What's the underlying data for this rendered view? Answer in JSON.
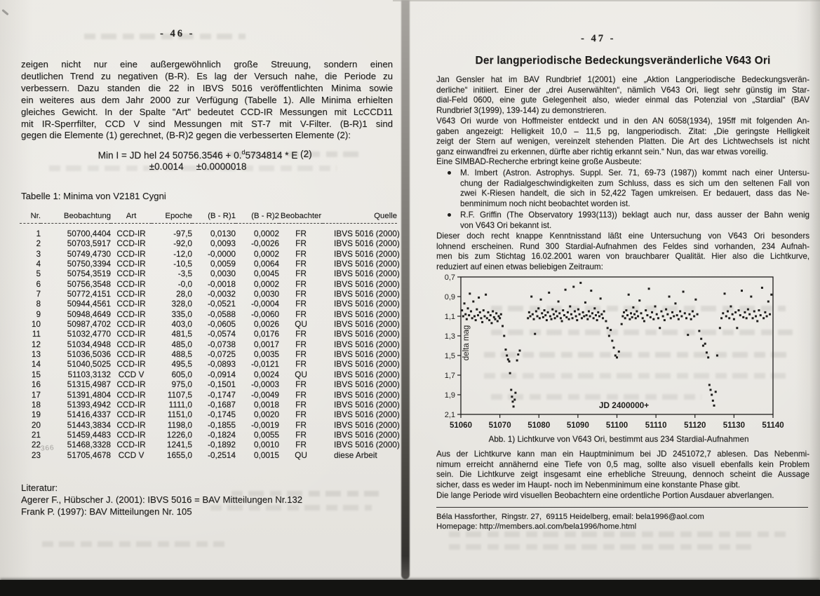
{
  "colors": {
    "paper": "#e9e7e2",
    "ink": "#1e1d1b"
  },
  "left_page": {
    "page_number": "- 46 -",
    "intro_lines": [
      "zeigen nicht nur eine außergewöhnlich große Streuung, sondern einen",
      "deutlichen Trend zu negativen (B-R). Es lag der Versuch nahe, die Periode zu",
      "verbessern. Dazu standen die 22 in IBVS 5016 veröffentlichten Minima sowie",
      "ein weiteres aus dem Jahr 2000 zur Verfügung (Tabelle 1). Alle Minima erhielten",
      "gleiches Gewicht. In der Spalte \"Art\" bedeutet CCD-IR Messungen mit LcCCD11",
      "mit IR-Sperrfilter, CCD V sind Messungen mit ST-7 mit V-Filter. (B-R)1 sind",
      "gegen die Elemente (1) gerechnet, (B-R)2 gegen die verbesserten Elemente (2):"
    ],
    "formula": {
      "pre": "Min I = JD hel 24 50756.3546 + 0.",
      "sup": "d",
      "post": "5734814 * E",
      "eq_no": "(2)",
      "err1": "±0.0014",
      "err2": "±0.0000018"
    },
    "table_title": "Tabelle 1: Minima von V2181 Cygni",
    "table": {
      "headers": [
        "Nr.",
        "Beobachtung",
        "Art",
        "Epoche",
        "(B - R)1",
        "(B - R)2",
        "Beobachter",
        "Quelle"
      ],
      "rows": [
        [
          "1",
          "50700,4404",
          "CCD-IR",
          "-97,5",
          "0,0130",
          "0,0002",
          "FR",
          "IBVS 5016 (2000)"
        ],
        [
          "2",
          "50703,5917",
          "CCD-IR",
          "-92,0",
          "0,0093",
          "-0,0026",
          "FR",
          "IBVS 5016 (2000)"
        ],
        [
          "3",
          "50749,4730",
          "CCD-IR",
          "-12,0",
          "-0,0000",
          "0,0002",
          "FR",
          "IBVS 5016 (2000)"
        ],
        [
          "4",
          "50750,3394",
          "CCD-IR",
          "-10,5",
          "0,0059",
          "0,0064",
          "FR",
          "IBVS 5016 (2000)"
        ],
        [
          "5",
          "50754,3519",
          "CCD-IR",
          "-3,5",
          "0,0030",
          "0,0045",
          "FR",
          "IBVS 5016 (2000)"
        ],
        [
          "6",
          "50756,3548",
          "CCD-IR",
          "-0,0",
          "-0,0018",
          "0,0002",
          "FR",
          "IBVS 5016 (2000)"
        ],
        [
          "7",
          "50772,4151",
          "CCD-IR",
          "28,0",
          "-0,0032",
          "0,0030",
          "FR",
          "IBVS 5016 (2000)"
        ],
        [
          "8",
          "50944,4561",
          "CCD-IR",
          "328,0",
          "-0,0521",
          "-0,0004",
          "FR",
          "IBVS 5016 (2000)"
        ],
        [
          "9",
          "50948,4649",
          "CCD-IR",
          "335,0",
          "-0,0588",
          "-0,0060",
          "FR",
          "IBVS 5016 (2000)"
        ],
        [
          "10",
          "50987,4702",
          "CCD-IR",
          "403,0",
          "-0,0605",
          "0,0026",
          "QU",
          "IBVS 5016 (2000)"
        ],
        [
          "11",
          "51032,4770",
          "CCD-IR",
          "481,5",
          "-0,0574",
          "0,0176",
          "FR",
          "IBVS 5016 (2000)"
        ],
        [
          "12",
          "51034,4948",
          "CCD-IR",
          "485,0",
          "-0,0738",
          "0,0017",
          "FR",
          "IBVS 5016 (2000)"
        ],
        [
          "13",
          "51036,5036",
          "CCD-IR",
          "488,5",
          "-0,0725",
          "0,0035",
          "FR",
          "IBVS 5016 (2000)"
        ],
        [
          "14",
          "51040,5025",
          "CCD-IR",
          "495,5",
          "-0,0893",
          "-0,0121",
          "FR",
          "IBVS 5016 (2000)"
        ],
        [
          "15",
          "51103,3132",
          "CCD V",
          "605,0",
          "-0,0914",
          "0,0024",
          "QU",
          "IBVS 5016 (2000)"
        ],
        [
          "16",
          "51315,4987",
          "CCD-IR",
          "975,0",
          "-0,1501",
          "-0,0003",
          "FR",
          "IBVS 5016 (2000)"
        ],
        [
          "17",
          "51391,4804",
          "CCD-IR",
          "1107,5",
          "-0,1747",
          "-0,0049",
          "FR",
          "IBVS 5016 (2000)"
        ],
        [
          "18",
          "51393,4942",
          "CCD-IR",
          "1111,0",
          "-0,1687",
          "0,0018",
          "FR",
          "IBVS 5016 (2000)"
        ],
        [
          "19",
          "51416,4337",
          "CCD-IR",
          "1151,0",
          "-0,1745",
          "0,0020",
          "FR",
          "IBVS 5016 (2000)"
        ],
        [
          "20",
          "51443,3834",
          "CCD-IR",
          "1198,0",
          "-0,1855",
          "-0,0019",
          "FR",
          "IBVS 5016 (2000)"
        ],
        [
          "21",
          "51459,4483",
          "CCD-IR",
          "1226,0",
          "-0,1824",
          "0,0055",
          "FR",
          "IBVS 5016 (2000)"
        ],
        [
          "22",
          "51468,3328",
          "CCD-IR",
          "1241,5",
          "-0,1892",
          "0,0010",
          "FR",
          "IBVS 5016 (2000)"
        ],
        [
          "23",
          "51705,4678",
          "CCD V",
          "1655,0",
          "-0,2514",
          "0,0015",
          "QU",
          "diese Arbeit"
        ]
      ]
    },
    "literatur_heading": "Literatur:",
    "literatur_lines": [
      "Agerer F., Hübscher J. (2001): IBVS 5016 = BAV Mitteilungen Nr.132",
      "Frank P. (1997): BAV Mitteilungen Nr. 105"
    ],
    "pencil_mark": "366"
  },
  "right_page": {
    "page_number": "- 47 -",
    "title": "Der langperiodische Bedeckungsveränderliche V643 Ori",
    "para1_lines": [
      "Jan Gensler hat im BAV Rundbrief 1(2001) eine „Aktion Langperiodische Bedeckungsverän-",
      "derliche“ initiiert. Einer der „drei Auserwählten“, nämlich V643 Ori, liegt sehr günstig im Star-",
      "dial-Feld 0600, eine gute Gelegenheit also, wieder einmal das Potenzial von „Stardial“ (BAV",
      "Rundbrief 3(1999), 139-144) zu demonstrieren."
    ],
    "para2_lines": [
      "V643 Ori wurde von Hoffmeister entdeckt und in den AN 6058(1934), 195ff mit folgenden An-",
      "gaben angezeigt: Helligkeit 10,0 – 11,5 pg, langperiodisch. Zitat: „Die geringste Helligkeit",
      "zeigt der Stern auf wenigen, vereinzelt stehenden Platten. Die Art des Lichtwechsels ist nicht",
      "ganz einwandfrei zu erkennen, dürfte aber richtig erkannt sein.“ Nun, das war etwas voreilig."
    ],
    "simbad_line": "Eine SIMBAD-Recherche erbringt keine große Ausbeute:",
    "bullet1_lines": [
      "M. Imbert (Astron. Astrophys. Suppl. Ser. 71, 69-73 (1987)) kommt nach einer Untersu-",
      "chung der Radialgeschwindigkeiten zum Schluss, dass es sich um den seltenen Fall von",
      "zwei K-Riesen handelt, die sich in 52,422 Tagen umkreisen. Er bedauert, dass das Ne-",
      "benminimum noch nicht beobachtet worden ist."
    ],
    "bullet2_lines": [
      "R.F. Griffin (The Observatory 1993(113)) beklagt auch nur, dass ausser der Bahn wenig",
      "von V643 Ori bekannt ist."
    ],
    "para3_lines": [
      "Dieser doch recht knappe Kenntnisstand läßt eine Untersuchung von V643 Ori besonders",
      "lohnend erscheinen. Rund 300 Stardial-Aufnahmen des Feldes sind vorhanden, 234 Aufnah-",
      "men bis zum Stichtag 16.02.2001 waren von brauchbarer Qualität. Hier also die Lichtkurve,",
      "reduziert auf einen etwas beliebigen Zeitraum:"
    ],
    "chart_caption": "Abb. 1)  Lichtkurve von V643 Ori, bestimmt aus 234 Stardial-Aufnahmen",
    "para4_lines": [
      "Aus der Lichtkurve kann man ein Hauptminimum bei JD 2451072,7 ablesen. Das Nebenmi-",
      "nimum erreicht annähernd eine Tiefe von 0,5 mag, sollte also visuell ebenfalls kein Problem",
      "sein. Die Lichtkurve zeigt insgesamt eine erhebliche Streuung, dennoch scheint die Aussage",
      "sicher, dass es weder im Haupt- noch im Nebenminimum eine konstante Phase gibt."
    ],
    "para5": "Die lange Periode wird visuellen Beobachtern eine ordentliche Portion Ausdauer abverlangen.",
    "footer_line1": "Béla Hassforther,  Ringstr. 27,  69115 Heidelberg, email: bela1996@aol.com",
    "footer_line2": "Homepage: http://members.aol.com/bela1996/home.html"
  },
  "chart_data": {
    "type": "scatter",
    "xlabel": "JD 2400000+",
    "ylabel": "delta mag",
    "xlim": [
      51060,
      51140
    ],
    "ylim_top_to_bottom": [
      0.7,
      2.1
    ],
    "y_axis_inverted": true,
    "x_ticks": [
      51060,
      51070,
      51080,
      51090,
      51100,
      51110,
      51120,
      51130,
      51140
    ],
    "x_tick_labels": [
      "51060",
      "51070",
      "51080",
      "51090",
      "51100",
      "51110",
      "51120",
      "51130",
      "51140"
    ],
    "y_ticks": [
      0.7,
      0.9,
      1.1,
      1.3,
      1.5,
      1.7,
      1.9,
      2.1
    ],
    "y_tick_labels": [
      "0,7",
      "0,9",
      "1,1",
      "1,3",
      "1,5",
      "1,7",
      "1,9",
      "2,1"
    ],
    "marker": "small-black-square",
    "points": [
      [
        51060.3,
        1.04
      ],
      [
        51060.6,
        1.1
      ],
      [
        51060.9,
        0.97
      ],
      [
        51061.2,
        1.08
      ],
      [
        51061.5,
        1.13
      ],
      [
        51061.8,
        1.02
      ],
      [
        51062.1,
        1.09
      ],
      [
        51062.3,
        0.87
      ],
      [
        51062.6,
        1.05
      ],
      [
        51062.9,
        1.12
      ],
      [
        51063.2,
        0.95
      ],
      [
        51063.5,
        1.1
      ],
      [
        51063.8,
        1.14
      ],
      [
        51064.1,
        1.03
      ],
      [
        51064.4,
        1.09
      ],
      [
        51064.6,
        0.91
      ],
      [
        51064.9,
        1.06
      ],
      [
        51065.2,
        1.12
      ],
      [
        51065.5,
        1.16
      ],
      [
        51065.8,
        1.04
      ],
      [
        51066.1,
        1.1
      ],
      [
        51066.4,
        0.88
      ],
      [
        51066.7,
        1.12
      ],
      [
        51067.0,
        1.06
      ],
      [
        51067.3,
        1.14
      ],
      [
        51067.6,
        1.09
      ],
      [
        51067.9,
        1.17
      ],
      [
        51068.2,
        1.05
      ],
      [
        51068.5,
        1.11
      ],
      [
        51068.8,
        1.13
      ],
      [
        51069.1,
        1.07
      ],
      [
        51069.4,
        1.15
      ],
      [
        51069.7,
        1.1
      ],
      [
        51070.0,
        1.12
      ],
      [
        51070.3,
        1.08
      ],
      [
        51070.7,
        1.2
      ],
      [
        51071.1,
        1.3
      ],
      [
        51071.5,
        1.44
      ],
      [
        51071.8,
        1.5
      ],
      [
        51072.1,
        1.54
      ],
      [
        51072.4,
        1.56
      ],
      [
        51072.6,
        1.68
      ],
      [
        51072.9,
        1.85
      ],
      [
        51073.1,
        1.92
      ],
      [
        51073.3,
        1.97
      ],
      [
        51073.5,
        2.02
      ],
      [
        51073.8,
        1.95
      ],
      [
        51074.0,
        1.88
      ],
      [
        51074.4,
        1.55
      ],
      [
        51074.7,
        1.49
      ],
      [
        51075.1,
        1.45
      ],
      [
        51077.2,
        1.12
      ],
      [
        51077.5,
        1.06
      ],
      [
        51077.8,
        1.1
      ],
      [
        51078.1,
        0.9
      ],
      [
        51078.4,
        1.08
      ],
      [
        51078.7,
        1.13
      ],
      [
        51079.0,
        1.28
      ],
      [
        51079.3,
        1.05
      ],
      [
        51079.6,
        1.1
      ],
      [
        51079.9,
        1.02
      ],
      [
        51080.2,
        1.12
      ],
      [
        51080.5,
        0.93
      ],
      [
        51080.8,
        1.07
      ],
      [
        51081.1,
        1.11
      ],
      [
        51081.4,
        1.04
      ],
      [
        51081.7,
        1.09
      ],
      [
        51082.0,
        1.14
      ],
      [
        51082.3,
        1.06
      ],
      [
        51082.6,
        0.86
      ],
      [
        51082.9,
        1.1
      ],
      [
        51083.2,
        1.13
      ],
      [
        51083.5,
        1.03
      ],
      [
        51083.8,
        1.08
      ],
      [
        51084.1,
        1.12
      ],
      [
        51084.4,
        1.05
      ],
      [
        51084.7,
        1.1
      ],
      [
        51085.0,
        0.95
      ],
      [
        51085.3,
        1.07
      ],
      [
        51085.6,
        1.12
      ],
      [
        51085.9,
        1.15
      ],
      [
        51086.2,
        1.04
      ],
      [
        51086.5,
        1.09
      ],
      [
        51086.8,
        0.83
      ],
      [
        51087.1,
        1.11
      ],
      [
        51087.4,
        1.06
      ],
      [
        51087.7,
        1.13
      ],
      [
        51088.0,
        1.0
      ],
      [
        51088.3,
        1.08
      ],
      [
        51088.6,
        1.12
      ],
      [
        51088.9,
        0.8
      ],
      [
        51089.2,
        1.05
      ],
      [
        51089.5,
        1.1
      ],
      [
        51089.8,
        1.14
      ],
      [
        51090.1,
        1.03
      ],
      [
        51090.4,
        1.08
      ],
      [
        51090.7,
        0.76
      ],
      [
        51091.0,
        1.12
      ],
      [
        51091.3,
        1.06
      ],
      [
        51091.6,
        1.1
      ],
      [
        51091.9,
        0.96
      ],
      [
        51092.2,
        1.09
      ],
      [
        51092.5,
        1.13
      ],
      [
        51092.8,
        1.05
      ],
      [
        51093.1,
        1.1
      ],
      [
        51093.4,
        0.84
      ],
      [
        51093.7,
        1.07
      ],
      [
        51094.0,
        1.12
      ],
      [
        51094.3,
        1.02
      ],
      [
        51094.6,
        1.09
      ],
      [
        51094.9,
        1.14
      ],
      [
        51095.2,
        1.06
      ],
      [
        51095.5,
        1.1
      ],
      [
        51095.8,
        0.92
      ],
      [
        51096.1,
        1.08
      ],
      [
        51096.4,
        1.12
      ],
      [
        51096.7,
        1.05
      ],
      [
        51097.2,
        1.15
      ],
      [
        51097.6,
        1.22
      ],
      [
        51098.0,
        1.3
      ],
      [
        51098.4,
        1.24
      ],
      [
        51098.8,
        1.35
      ],
      [
        51099.2,
        1.42
      ],
      [
        51099.6,
        1.5
      ],
      [
        51100.0,
        1.52
      ],
      [
        51100.5,
        1.46
      ],
      [
        51101.2,
        1.18
      ],
      [
        51101.5,
        1.1
      ],
      [
        51101.8,
        1.06
      ],
      [
        51102.1,
        1.12
      ],
      [
        51102.4,
        1.04
      ],
      [
        51102.7,
        1.09
      ],
      [
        51103.0,
        0.88
      ],
      [
        51103.3,
        1.13
      ],
      [
        51103.6,
        1.07
      ],
      [
        51103.9,
        1.11
      ],
      [
        51104.2,
        1.01
      ],
      [
        51104.5,
        1.08
      ],
      [
        51104.8,
        1.12
      ],
      [
        51105.1,
        1.05
      ],
      [
        51105.4,
        1.1
      ],
      [
        51105.8,
        0.94
      ],
      [
        51106.2,
        1.07
      ],
      [
        51106.6,
        1.12
      ],
      [
        51107.0,
        1.15
      ],
      [
        51107.4,
        1.04
      ],
      [
        51107.8,
        1.09
      ],
      [
        51108.2,
        0.82
      ],
      [
        51108.6,
        1.11
      ],
      [
        51109.0,
        1.06
      ],
      [
        51109.4,
        1.13
      ],
      [
        51109.8,
        1.0
      ],
      [
        51110.2,
        1.08
      ],
      [
        51110.6,
        1.12
      ],
      [
        51111.0,
        1.22
      ],
      [
        51111.4,
        1.05
      ],
      [
        51111.8,
        1.1
      ],
      [
        51112.2,
        1.14
      ],
      [
        51112.6,
        1.03
      ],
      [
        51113.0,
        1.08
      ],
      [
        51113.4,
        0.9
      ],
      [
        51113.8,
        1.12
      ],
      [
        51114.2,
        1.06
      ],
      [
        51114.6,
        1.1
      ],
      [
        51115.0,
        0.97
      ],
      [
        51115.4,
        1.09
      ],
      [
        51115.8,
        1.13
      ],
      [
        51116.2,
        1.05
      ],
      [
        51116.6,
        1.1
      ],
      [
        51117.0,
        0.85
      ],
      [
        51117.4,
        1.07
      ],
      [
        51117.8,
        1.12
      ],
      [
        51118.2,
        1.29
      ],
      [
        51118.6,
        1.08
      ],
      [
        51119.0,
        1.13
      ],
      [
        51119.4,
        1.05
      ],
      [
        51119.8,
        1.1
      ],
      [
        51120.2,
        0.93
      ],
      [
        51120.6,
        1.08
      ],
      [
        51121.1,
        1.25
      ],
      [
        51121.6,
        1.33
      ],
      [
        51122.1,
        1.4
      ],
      [
        51122.6,
        1.38
      ],
      [
        51123.0,
        1.47
      ],
      [
        51123.4,
        1.52
      ],
      [
        51123.7,
        1.8
      ],
      [
        51124.0,
        1.85
      ],
      [
        51124.3,
        1.9
      ],
      [
        51124.6,
        1.96
      ],
      [
        51124.9,
        2.01
      ],
      [
        51125.3,
        1.87
      ],
      [
        51125.7,
        1.5
      ],
      [
        51126.4,
        1.22
      ],
      [
        51126.8,
        1.12
      ],
      [
        51127.2,
        1.07
      ],
      [
        51127.6,
        0.87
      ],
      [
        51128.0,
        1.1
      ],
      [
        51128.4,
        1.05
      ],
      [
        51128.8,
        1.12
      ],
      [
        51129.2,
        1.0
      ],
      [
        51129.6,
        1.08
      ],
      [
        51130.0,
        1.13
      ],
      [
        51130.4,
        1.06
      ],
      [
        51130.8,
        1.22
      ],
      [
        51131.2,
        1.04
      ],
      [
        51131.6,
        1.09
      ],
      [
        51132.0,
        0.84
      ],
      [
        51132.4,
        1.11
      ],
      [
        51132.8,
        1.06
      ],
      [
        51133.2,
        1.12
      ],
      [
        51133.6,
        1.03
      ],
      [
        51134.0,
        1.08
      ],
      [
        51134.4,
        0.9
      ],
      [
        51134.8,
        1.12
      ],
      [
        51135.2,
        1.05
      ],
      [
        51135.6,
        1.1
      ],
      [
        51136.0,
        1.15
      ],
      [
        51136.4,
        1.04
      ],
      [
        51136.8,
        1.09
      ],
      [
        51137.2,
        0.81
      ],
      [
        51137.6,
        1.12
      ],
      [
        51138.0,
        1.06
      ],
      [
        51138.4,
        1.1
      ],
      [
        51138.8,
        0.95
      ],
      [
        51139.2,
        1.08
      ],
      [
        51139.6,
        0.88
      ]
    ]
  }
}
